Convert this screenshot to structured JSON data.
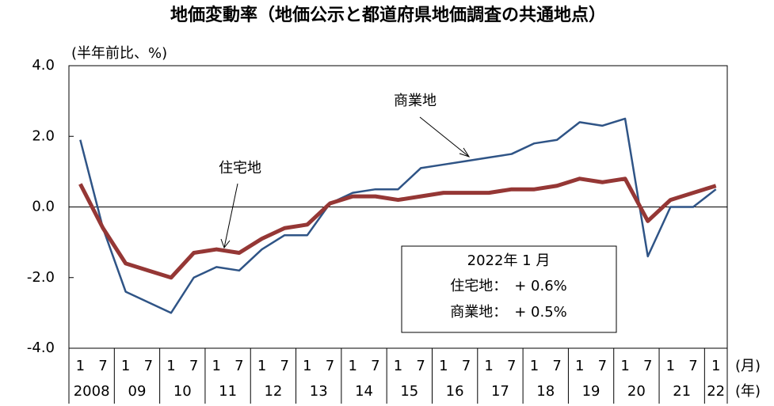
{
  "chart_data": {
    "type": "line",
    "title": "地価変動率（地価公示と都道府県地価調査の共通地点）",
    "y_unit_label": "(半年前比、%)",
    "x_unit_label": "(月)",
    "year_unit_label": "(年)",
    "categories": [
      "1",
      "7",
      "1",
      "7",
      "1",
      "7",
      "1",
      "7",
      "1",
      "7",
      "1",
      "7",
      "1",
      "7",
      "1",
      "7",
      "1",
      "7",
      "1",
      "7",
      "1",
      "7",
      "1",
      "7",
      "1",
      "7",
      "1",
      "7",
      "1"
    ],
    "year_labels": [
      "2008",
      "09",
      "10",
      "11",
      "12",
      "13",
      "14",
      "15",
      "16",
      "17",
      "18",
      "19",
      "20",
      "21",
      "22"
    ],
    "series": [
      {
        "name": "商業地",
        "color": "#2f5486",
        "values": [
          1.9,
          -0.6,
          -2.4,
          -2.7,
          -3.0,
          -2.0,
          -1.7,
          -1.8,
          -1.2,
          -0.8,
          -0.8,
          0.1,
          0.4,
          0.5,
          0.5,
          1.1,
          1.2,
          1.3,
          1.4,
          1.5,
          1.8,
          1.9,
          2.4,
          2.3,
          2.5,
          -1.4,
          0.0,
          0.0,
          0.5
        ]
      },
      {
        "name": "住宅地",
        "color": "#953735",
        "values": [
          0.65,
          -0.6,
          -1.6,
          -1.8,
          -2.0,
          -1.3,
          -1.2,
          -1.3,
          -0.9,
          -0.6,
          -0.5,
          0.1,
          0.3,
          0.3,
          0.2,
          0.3,
          0.4,
          0.4,
          0.4,
          0.5,
          0.5,
          0.6,
          0.8,
          0.7,
          0.8,
          -0.4,
          0.2,
          0.4,
          0.6
        ]
      }
    ],
    "ylim": [
      -4,
      4
    ],
    "yticks": [
      {
        "value": 4,
        "label": "4.0"
      },
      {
        "value": 2,
        "label": "2.0"
      },
      {
        "value": 0,
        "label": "0.0"
      },
      {
        "value": -2,
        "label": "-2.0"
      },
      {
        "value": -4,
        "label": "-4.0"
      }
    ],
    "annotation_box": [
      "2022年 1 月",
      "住宅地：　+ 0.6%",
      "商業地：　+ 0.5%"
    ]
  }
}
